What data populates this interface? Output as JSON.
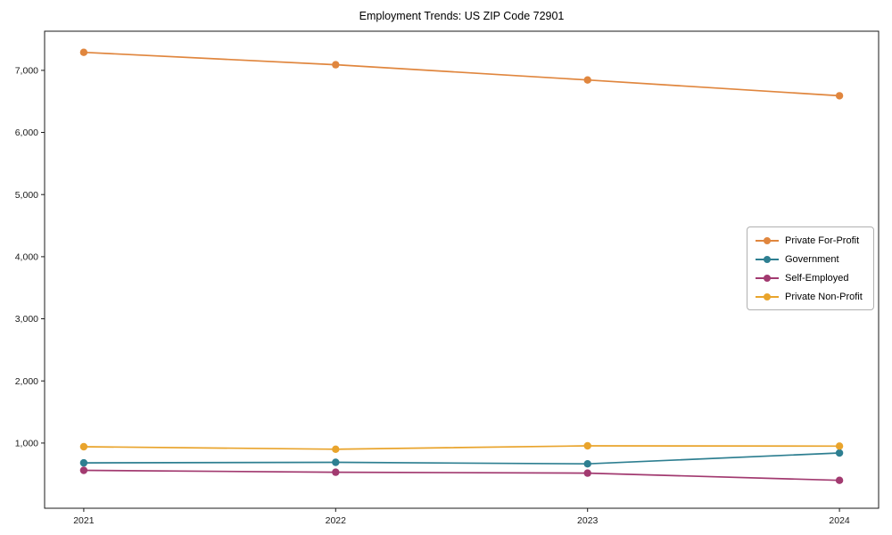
{
  "chart_data": {
    "type": "line",
    "title": "Employment Trends: US ZIP Code 72901",
    "categories": [
      "2021",
      "2022",
      "2023",
      "2024"
    ],
    "series": [
      {
        "name": "Private For-Profit",
        "color": "#e0863e",
        "values": [
          7290,
          7090,
          6845,
          6590
        ]
      },
      {
        "name": "Government",
        "color": "#2e7f91",
        "values": [
          680,
          690,
          665,
          840
        ]
      },
      {
        "name": "Self-Employed",
        "color": "#a23a70",
        "values": [
          560,
          530,
          515,
          400
        ]
      },
      {
        "name": "Private Non-Profit",
        "color": "#e9a42c",
        "values": [
          940,
          900,
          955,
          950
        ]
      }
    ],
    "xlabel": "",
    "ylabel": "",
    "ylim": [
      -50,
      7630
    ],
    "yticks": [
      1000,
      2000,
      3000,
      4000,
      5000,
      6000,
      7000
    ],
    "grid": false,
    "legend_position": "center-right",
    "marker": "circle"
  }
}
